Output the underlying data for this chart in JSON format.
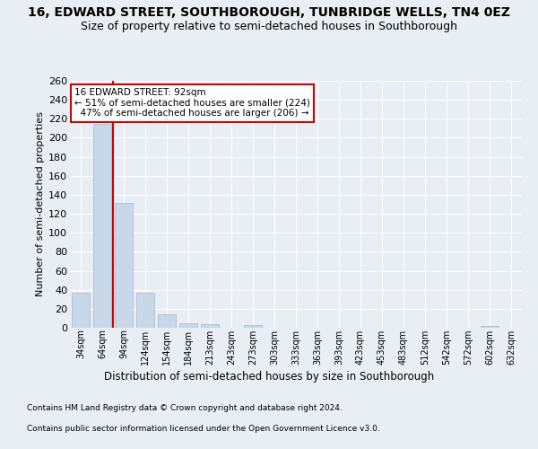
{
  "title": "16, EDWARD STREET, SOUTHBOROUGH, TUNBRIDGE WELLS, TN4 0EZ",
  "subtitle": "Size of property relative to semi-detached houses in Southborough",
  "xlabel": "Distribution of semi-detached houses by size in Southborough",
  "ylabel": "Number of semi-detached properties",
  "footnote1": "Contains HM Land Registry data © Crown copyright and database right 2024.",
  "footnote2": "Contains public sector information licensed under the Open Government Licence v3.0.",
  "categories": [
    "34sqm",
    "64sqm",
    "94sqm",
    "124sqm",
    "154sqm",
    "184sqm",
    "213sqm",
    "243sqm",
    "273sqm",
    "303sqm",
    "333sqm",
    "363sqm",
    "393sqm",
    "423sqm",
    "453sqm",
    "483sqm",
    "512sqm",
    "542sqm",
    "572sqm",
    "602sqm",
    "632sqm"
  ],
  "values": [
    37,
    215,
    131,
    37,
    14,
    5,
    4,
    0,
    3,
    0,
    0,
    0,
    0,
    0,
    0,
    0,
    0,
    0,
    0,
    2,
    0
  ],
  "bar_color": "#c8d8e8",
  "bar_edge_color": "#a0b8cc",
  "vline_color": "#cc0000",
  "property_label": "16 EDWARD STREET: 92sqm",
  "pct_smaller": 51,
  "count_smaller": 224,
  "pct_larger": 47,
  "count_larger": 206,
  "annotation_box_edge": "#cc0000",
  "ylim": [
    0,
    260
  ],
  "yticks": [
    0,
    20,
    40,
    60,
    80,
    100,
    120,
    140,
    160,
    180,
    200,
    220,
    240,
    260
  ],
  "background_color": "#e8eef4",
  "plot_bg_color": "#e8eef4",
  "title_fontsize": 10,
  "subtitle_fontsize": 9
}
